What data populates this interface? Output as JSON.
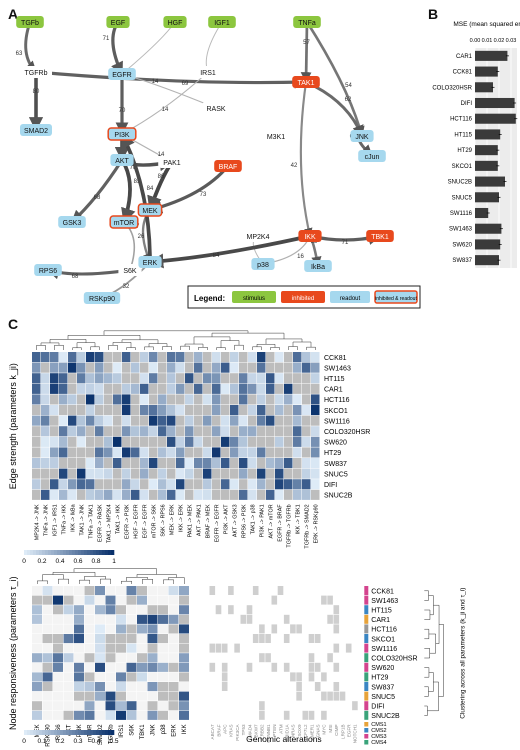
{
  "panel_labels": {
    "a": "A",
    "b": "B",
    "c": "C"
  },
  "colors": {
    "stimulus": "#8cc63f",
    "inhibited": "#e8491d",
    "readout": "#a6d8ee",
    "edge_dark": "#555555",
    "heat_high": "#08306b",
    "heat_low": "#deebf7",
    "na_gray": "#bdbdbd",
    "bar": "#3a3a3a"
  },
  "network": {
    "nodes": [
      {
        "id": "TGFb",
        "label": "TGFb",
        "kind": "stimulus"
      },
      {
        "id": "EGF",
        "label": "EGF",
        "kind": "stimulus"
      },
      {
        "id": "HGF",
        "label": "HGF",
        "kind": "stimulus"
      },
      {
        "id": "IGF1",
        "label": "IGF1",
        "kind": "stimulus"
      },
      {
        "id": "TNFa",
        "label": "TNFa",
        "kind": "stimulus"
      },
      {
        "id": "TGFRb",
        "label": "TGFRb",
        "kind": "plain"
      },
      {
        "id": "EGFR",
        "label": "EGFR",
        "kind": "readout"
      },
      {
        "id": "IRS1",
        "label": "IRS1",
        "kind": "plain"
      },
      {
        "id": "TAK1",
        "label": "TAK1",
        "kind": "inhibited"
      },
      {
        "id": "RASK",
        "label": "RASK",
        "kind": "plain"
      },
      {
        "id": "SMAD2",
        "label": "SMAD2",
        "kind": "readout"
      },
      {
        "id": "PI3K",
        "label": "PI3K",
        "kind": "both"
      },
      {
        "id": "M3K1",
        "label": "M3K1",
        "kind": "plain"
      },
      {
        "id": "JNK",
        "label": "JNK",
        "kind": "readout"
      },
      {
        "id": "AKT",
        "label": "AKT",
        "kind": "readout"
      },
      {
        "id": "PAK1",
        "label": "PAK1",
        "kind": "plain"
      },
      {
        "id": "BRAF",
        "label": "BRAF",
        "kind": "inhibited"
      },
      {
        "id": "cJun",
        "label": "cJun",
        "kind": "readout"
      },
      {
        "id": "GSK3",
        "label": "GSK3",
        "kind": "readout"
      },
      {
        "id": "mTOR",
        "label": "mTOR",
        "kind": "both"
      },
      {
        "id": "MEK",
        "label": "MEK",
        "kind": "both"
      },
      {
        "id": "MP2K4",
        "label": "MP2K4",
        "kind": "plain"
      },
      {
        "id": "IKK",
        "label": "IKK",
        "kind": "inhibited"
      },
      {
        "id": "TBK1",
        "label": "TBK1",
        "kind": "inhibited"
      },
      {
        "id": "RPS6",
        "label": "RPS6",
        "kind": "readout"
      },
      {
        "id": "S6K",
        "label": "S6K",
        "kind": "plain"
      },
      {
        "id": "ERK",
        "label": "ERK",
        "kind": "readout"
      },
      {
        "id": "p38",
        "label": "p38",
        "kind": "readout"
      },
      {
        "id": "IkBa",
        "label": "IkBa",
        "kind": "readout"
      },
      {
        "id": "RSKp90",
        "label": "RSKp90",
        "kind": "readout"
      }
    ],
    "edges": [
      {
        "from": "TGFb",
        "to": "TGFRb",
        "w": "63"
      },
      {
        "from": "TGFRb",
        "to": "SMAD2",
        "w": "80"
      },
      {
        "from": "TGFRb",
        "to": "TAK1",
        "w": "69"
      },
      {
        "from": "EGF",
        "to": "EGFR",
        "w": "71"
      },
      {
        "from": "EGFR",
        "to": "PI3K",
        "w": "70"
      },
      {
        "from": "HGF",
        "to": "EGFR",
        "w": ""
      },
      {
        "from": "IGF1",
        "to": "IRS1",
        "w": ""
      },
      {
        "from": "TNFa",
        "to": "TAK1",
        "w": "57"
      },
      {
        "from": "TNFa",
        "to": "JNK",
        "w": "54"
      },
      {
        "from": "EGFR",
        "to": "RASK",
        "w": "14"
      },
      {
        "from": "IRS1",
        "to": "PI3K",
        "w": "14"
      },
      {
        "from": "TAK1",
        "to": "JNK",
        "w": "62"
      },
      {
        "from": "TAK1",
        "to": "IKK",
        "w": "42"
      },
      {
        "from": "PI3K",
        "to": "AKT",
        "w": "81"
      },
      {
        "from": "PI3K",
        "to": "PAK1",
        "w": "14"
      },
      {
        "from": "JNK",
        "to": "cJun",
        "w": "64"
      },
      {
        "from": "AKT",
        "to": "GSK3",
        "w": "68"
      },
      {
        "from": "AKT",
        "to": "mTOR",
        "w": "85"
      },
      {
        "from": "AKT",
        "to": "PAK1",
        "w": "78"
      },
      {
        "from": "PAK1",
        "to": "MEK",
        "w": "86"
      },
      {
        "from": "BRAF",
        "to": "MEK",
        "w": "73"
      },
      {
        "from": "MEK",
        "to": "ERK",
        "w": "47"
      },
      {
        "from": "ERK",
        "to": "RSKp90",
        "w": "32"
      },
      {
        "from": "mTOR",
        "to": "S6K",
        "w": "26"
      },
      {
        "from": "S6K",
        "to": "RPS6",
        "w": "68"
      },
      {
        "from": "IKK",
        "to": "IkBa",
        "w": "53"
      },
      {
        "from": "IKK",
        "to": "p38",
        "w": "16"
      },
      {
        "from": "MP2K4",
        "to": "p38",
        "w": ""
      },
      {
        "from": "IKK",
        "to": "TBK1",
        "w": "71"
      },
      {
        "from": "ERK",
        "to": "PI3K",
        "w": "84"
      },
      {
        "from": "IKK",
        "to": "ERK",
        "w": "84"
      }
    ],
    "legend": {
      "title": "Legend:",
      "stimulus": "stimulus",
      "inhibited": "inhibited",
      "readout": "readout",
      "both": "inhibited & readout"
    }
  },
  "chart_data": [
    {
      "type": "bar",
      "title": "MSE (mean squared error)",
      "xlim": [
        0,
        0.035
      ],
      "ticks": [
        "0.00",
        "0.01",
        "0.02",
        "0.03"
      ],
      "categories": [
        "CAR1",
        "CCK81",
        "COLO320HSR",
        "DIFI",
        "HCT116",
        "HT115",
        "HT29",
        "SKCO1",
        "SNUC2B",
        "SNUC5",
        "SW1116",
        "SW1463",
        "SW620",
        "SW837"
      ],
      "values": [
        0.027,
        0.019,
        0.015,
        0.033,
        0.034,
        0.021,
        0.019,
        0.019,
        0.025,
        0.02,
        0.011,
        0.022,
        0.021,
        0.02
      ]
    },
    {
      "type": "heatmap",
      "ylabel": "Edge strength (parameters k_ji)",
      "rows": [
        "CCK81",
        "SW1463",
        "HT115",
        "CAR1",
        "HCT116",
        "SKCO1",
        "SW1116",
        "COLO320HSR",
        "SW620",
        "HT29",
        "SW837",
        "SNUC5",
        "DIFI",
        "SNUC2B"
      ],
      "columns": [
        "MP2K4 -> JNK",
        "TNFa -> JNK",
        "IGF1 -> IRS1",
        "TNFa -> IKK",
        "IKK -> IkBa",
        "TAK1 -> JNK",
        "TNFa -> TAK1",
        "EGFR -> RASK",
        "TAK1 -> MP2K4",
        "TAK1 -> IKK",
        "EGFR -> PI3K",
        "HGF -> EGFR",
        "EGF -> EGFR",
        "mTOR -> S6K",
        "S6K -> RPS6",
        "MEK -> ERK",
        "IKK -> ERK",
        "PAK1 -> MEK",
        "AKT -> PAK1",
        "BRAF -> MEK",
        "EGFR -> EGFR",
        "PI3K -> AKT",
        "AKT -> GSK3",
        "RPS6 -> PI3K",
        "TAK1 -> p38",
        "PI3K -> PAK1",
        "AKT -> mTOR",
        "EGFR -> BRAF",
        "TGFRb -> TGFRb",
        "IKK -> TBK1",
        "TGFRb -> SMAD2",
        "ERK -> RSKp90"
      ],
      "colorbar": [
        "0",
        "0.2",
        "0.4",
        "0.6",
        "0.8",
        "1"
      ]
    },
    {
      "type": "heatmap",
      "ylabel": "Node responsiveness (parameters τ_i)",
      "rows": [
        "CCK81",
        "SW1463",
        "HT115",
        "CAR1",
        "HCT116",
        "SKCO1",
        "SW1116",
        "COLO320HSR",
        "SW620",
        "HT29",
        "SW837",
        "SNUC5",
        "DIFI",
        "SNUC2B"
      ],
      "columns": [
        "MEK",
        "RSKp90",
        "RPS6",
        "AKT",
        "PI3K",
        "mTOR",
        "SMAD2",
        "TGFRb",
        "IRS1",
        "S6K",
        "TBK1",
        "JNK",
        "p38",
        "ERK",
        "IKK"
      ],
      "colorbar": [
        "0",
        "0.1",
        "0.2",
        "0.3",
        "0.4",
        "0.5"
      ]
    }
  ],
  "genomic": {
    "title": "Genomic alterations",
    "columns": [
      "ABCA7",
      "BRAF",
      "APC",
      "KRAS",
      "PIK3CA",
      "TP53",
      "SMAD4",
      "FBXW7",
      "ERBB2",
      "CTNNB1",
      "PTEN",
      "ATM",
      "ARID1A",
      "NRAS",
      "SOX9",
      "TCF7L2",
      "AMER1",
      "GNAS",
      "MYC",
      "MSI",
      "CIMP",
      "LRP1B",
      "EGFR",
      "NOTCH1"
    ],
    "cms": {
      "legend": [
        "CMS1",
        "CMS2",
        "CMS3",
        "CMS4"
      ],
      "colors": [
        "#e7a33a",
        "#3a86c3",
        "#d4448e",
        "#3aa37a"
      ],
      "rows": [
        2,
        2,
        1,
        0,
        4,
        1,
        2,
        3,
        2,
        3,
        1,
        0,
        2,
        3
      ]
    },
    "dendro_label": "Clustering across all parameters (k_ji and τ_i)"
  }
}
